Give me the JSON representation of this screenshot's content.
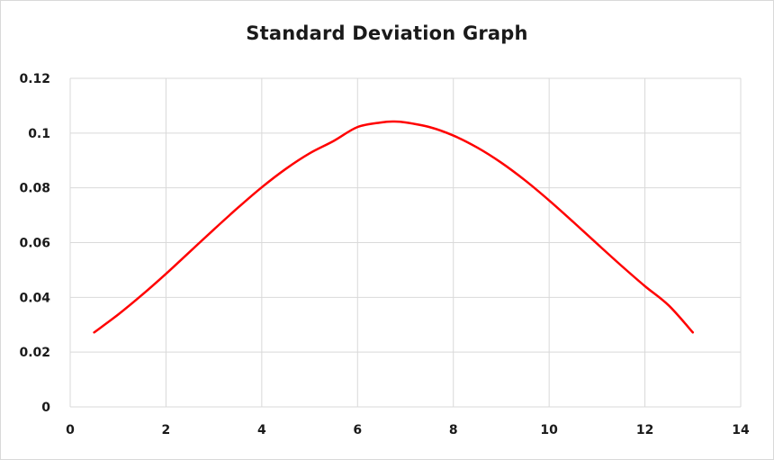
{
  "chart_data": {
    "type": "line",
    "title": "Standard Deviation Graph",
    "xlabel": "",
    "ylabel": "",
    "xlim": [
      0,
      14
    ],
    "ylim": [
      0,
      0.12
    ],
    "x_ticks": [
      0,
      2,
      4,
      6,
      8,
      10,
      12,
      14
    ],
    "y_ticks": [
      0,
      0.02,
      0.04,
      0.06,
      0.08,
      0.1,
      0.12
    ],
    "x_tick_labels": [
      "0",
      "2",
      "4",
      "6",
      "8",
      "10",
      "12",
      "14"
    ],
    "y_tick_labels": [
      "0",
      "0.02",
      "0.04",
      "0.06",
      "0.08",
      "0.1",
      "0.12"
    ],
    "grid": true,
    "legend": "none",
    "series": [
      {
        "color": "#ff0000",
        "x": [
          0.5,
          1.0,
          1.5,
          2.0,
          2.5,
          3.0,
          3.5,
          4.0,
          4.5,
          5.0,
          5.5,
          6.0,
          6.5,
          6.75,
          7.0,
          7.5,
          8.0,
          8.5,
          9.0,
          9.5,
          10.0,
          10.5,
          11.0,
          11.5,
          12.0,
          12.5,
          13.0
        ],
        "y": [
          0.0272,
          0.0337,
          0.0409,
          0.0486,
          0.0567,
          0.0648,
          0.0727,
          0.0802,
          0.0869,
          0.0926,
          0.0971,
          0.1022,
          0.1039,
          0.1042,
          0.1039,
          0.1022,
          0.0991,
          0.0947,
          0.0892,
          0.0827,
          0.0754,
          0.0676,
          0.0596,
          0.0517,
          0.0441,
          0.037,
          0.0272
        ]
      }
    ]
  }
}
